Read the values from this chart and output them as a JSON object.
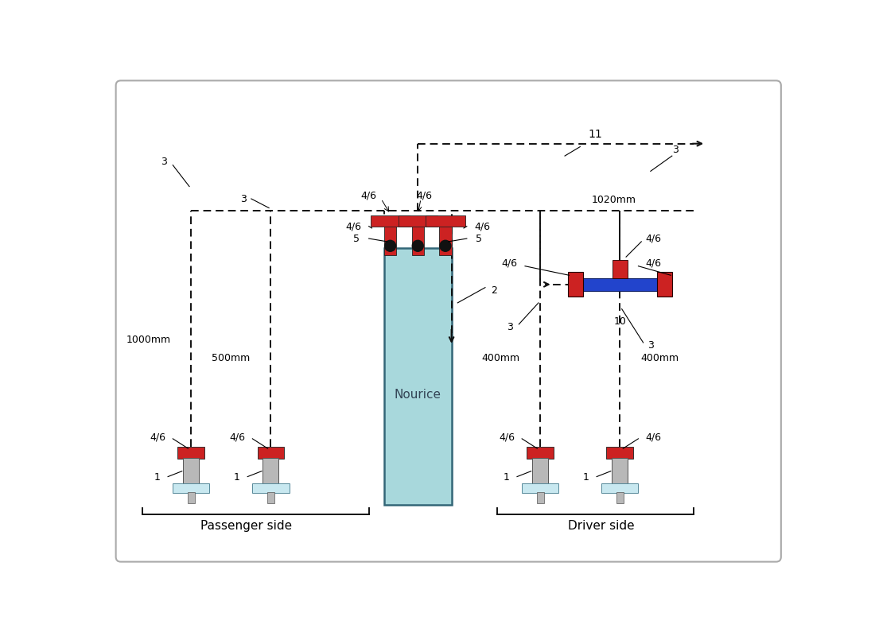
{
  "background_color": "#ffffff",
  "border_color": "#aaaaaa",
  "dashed_color": "#111111",
  "red_color": "#cc2222",
  "blue_color": "#2244cc",
  "nourice_color": "#a8d8dc",
  "body_color": "#b8b8b8",
  "base_color": "#c8e8f0",
  "passenger_label": "Passenger side",
  "driver_label": "Driver side",
  "nourice_label": "Nourice",
  "labels": {
    "1": "1",
    "2": "2",
    "3": "3",
    "4_6": "4/6",
    "5": "5",
    "10": "10",
    "11": "11",
    "1000mm": "1000mm",
    "500mm": "500mm",
    "400mm_l": "400mm",
    "400mm_r": "400mm",
    "1020mm": "1020mm"
  }
}
